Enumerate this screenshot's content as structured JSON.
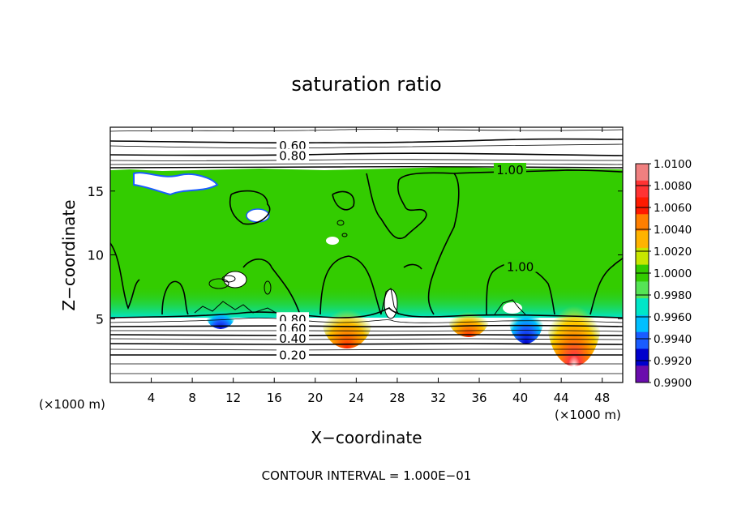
{
  "chart_data": {
    "type": "heatmap",
    "title": "saturation ratio",
    "xlabel": "X−coordinate",
    "ylabel": "Z−coordinate",
    "x_unit_label": "(×1000 m)",
    "y_unit_label": "(×1000 m)",
    "footer": "CONTOUR INTERVAL = 1.000E−01",
    "xlim": [
      0,
      50
    ],
    "ylim": [
      0,
      20
    ],
    "x_ticks": [
      4,
      8,
      12,
      16,
      20,
      24,
      28,
      32,
      36,
      40,
      44,
      48
    ],
    "y_ticks": [
      5,
      10,
      15
    ],
    "colorbar": {
      "levels": [
        "1.0100",
        "1.0080",
        "1.0060",
        "1.0040",
        "1.0020",
        "1.0000",
        "0.9980",
        "0.9960",
        "0.9940",
        "0.9920",
        "0.9900"
      ],
      "colors": [
        "#f08080",
        "#ff3333",
        "#ff1a00",
        "#ff7f00",
        "#ffb300",
        "#c8e600",
        "#33cc00",
        "#55e455",
        "#00e6c8",
        "#00bfff",
        "#1a5cff",
        "#0000cd",
        "#6a0dad"
      ]
    },
    "contour_labels": [
      {
        "text": "0.60",
        "x": 17.8,
        "y": 18.6
      },
      {
        "text": "0.80",
        "x": 17.8,
        "y": 17.8
      },
      {
        "text": "1.00",
        "x": 39,
        "y": 16.7
      },
      {
        "text": "1.00",
        "x": 40,
        "y": 9.1
      },
      {
        "text": "0.80",
        "x": 17.8,
        "y": 5.0
      },
      {
        "text": "0.60",
        "x": 17.8,
        "y": 4.3
      },
      {
        "text": "0.40",
        "x": 17.8,
        "y": 3.5
      },
      {
        "text": "0.20",
        "x": 17.8,
        "y": 2.2
      }
    ],
    "hotspots": [
      {
        "x": 23.5,
        "z": 5.5,
        "value": 1.006
      },
      {
        "x": 35,
        "z": 5.3,
        "value": 1.006
      },
      {
        "x": 44.8,
        "z": 5.8,
        "value": 1.008
      },
      {
        "x": 40.5,
        "z": 5.6,
        "value": 0.994
      }
    ],
    "grid": false
  }
}
